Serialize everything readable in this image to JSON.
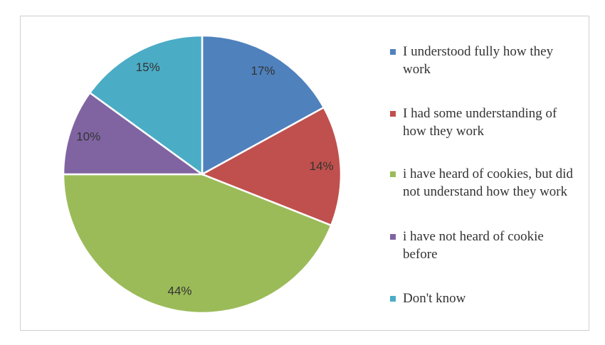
{
  "chart_data": {
    "type": "pie",
    "categories": [
      "I understood fully how they work",
      "I had some understanding of how they work",
      "i have heard of cookies, but did not understand how they work",
      "i have not heard of cookie before",
      "Don't know"
    ],
    "values": [
      17,
      14,
      44,
      10,
      15
    ],
    "value_labels": [
      "17%",
      "14%",
      "44%",
      "10%",
      "15%"
    ],
    "colors": [
      "#4f81bd",
      "#c0504d",
      "#9bbb59",
      "#8064a2",
      "#4bacc6"
    ],
    "legend": "right"
  }
}
